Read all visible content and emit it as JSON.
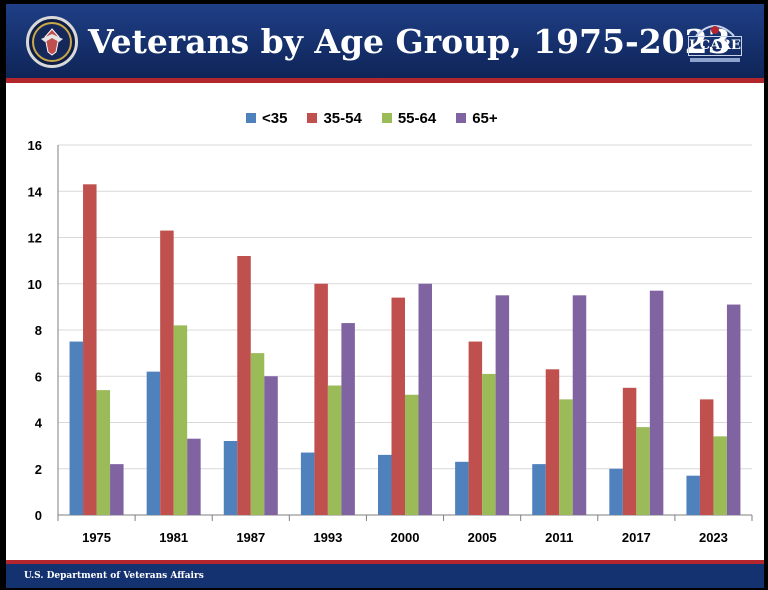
{
  "header": {
    "title": "Veterans by Age Group, 1975-2023",
    "seal_icon": "va-seal-icon",
    "logo_text": "I CARE"
  },
  "footer": {
    "text": "U.S. Department of Veterans Affairs"
  },
  "colors": {
    "header_bg": "#1a3a7c",
    "accent_red": "#b3262e"
  },
  "chart_data": {
    "type": "bar",
    "title": "",
    "xlabel": "",
    "ylabel": "",
    "ylim": [
      0,
      16
    ],
    "yticks": [
      0,
      2,
      4,
      6,
      8,
      10,
      12,
      14,
      16
    ],
    "grid": true,
    "legend": "top",
    "categories": [
      "1975",
      "1981",
      "1987",
      "1993",
      "2000",
      "2005",
      "2011",
      "2017",
      "2023"
    ],
    "series": [
      {
        "name": "<35",
        "color": "#4f81bd",
        "values": [
          7.5,
          6.2,
          3.2,
          2.7,
          2.6,
          2.3,
          2.2,
          2.0,
          1.7
        ]
      },
      {
        "name": "35-54",
        "color": "#c0504d",
        "values": [
          14.3,
          12.3,
          11.2,
          10.0,
          9.4,
          7.5,
          6.3,
          5.5,
          5.0
        ]
      },
      {
        "name": "55-64",
        "color": "#9bbb59",
        "values": [
          5.4,
          8.2,
          7.0,
          5.6,
          5.2,
          6.1,
          5.0,
          3.8,
          3.4
        ]
      },
      {
        "name": "65+",
        "color": "#8064a2",
        "values": [
          2.2,
          3.3,
          6.0,
          8.3,
          10.0,
          9.5,
          9.5,
          9.7,
          9.1
        ]
      }
    ]
  }
}
